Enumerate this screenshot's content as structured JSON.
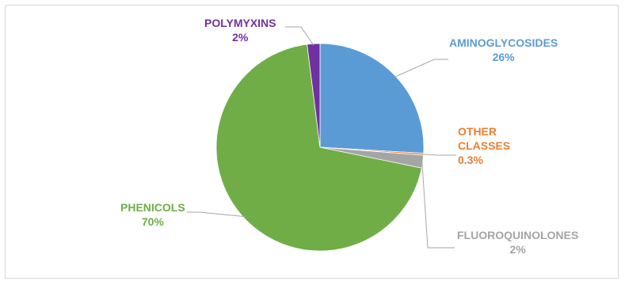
{
  "chart_data": {
    "type": "pie",
    "title": "",
    "slices": [
      {
        "name": "AMINOGLYCOSIDES",
        "value": 26,
        "label": "26%",
        "color": "#5b9bd5"
      },
      {
        "name": "OTHER CLASSES",
        "value": 0.3,
        "label": "0.3%",
        "color": "#ed7d31"
      },
      {
        "name": "FLUOROQUINOLONES",
        "value": 2,
        "label": "2%",
        "color": "#a5a5a5"
      },
      {
        "name": "PHENICOLS",
        "value": 70,
        "label": "70%",
        "color": "#70ad47"
      },
      {
        "name": "POLYMYXINS",
        "value": 2,
        "label": "2%",
        "color": "#7030a0"
      }
    ],
    "data_labels_colors": {
      "AMINOGLYCOSIDES": "#5b9bd5",
      "OTHER CLASSES": "#ed7d31",
      "FLUOROQUINOLONES": "#a5a5a5",
      "PHENICOLS": "#70ad47",
      "POLYMYXINS": "#7030a0"
    },
    "legend": "none"
  }
}
